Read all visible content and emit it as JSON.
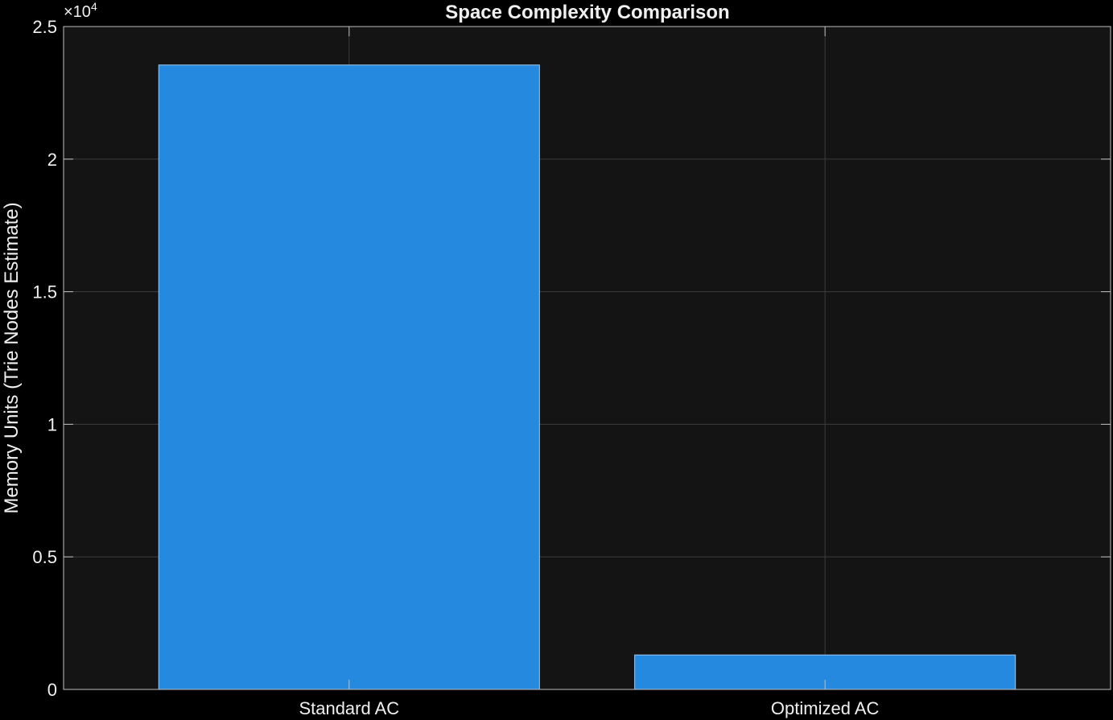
{
  "chart_data": {
    "type": "bar",
    "title": "Space Complexity Comparison",
    "xlabel": "",
    "ylabel": "Memory Units (Trie Nodes Estimate)",
    "categories": [
      "Standard AC",
      "Optimized AC"
    ],
    "values": [
      23550,
      1300
    ],
    "ylim": [
      0,
      25000
    ],
    "xlim": [
      0.4,
      2.6
    ],
    "yticks": [
      0,
      5000,
      10000,
      15000,
      20000,
      25000
    ],
    "ytick_labels": [
      "0",
      "0.5",
      "1",
      "1.5",
      "2",
      "2.5"
    ],
    "y_exponent_label": "×10",
    "y_exponent_power": "4",
    "grid": true,
    "colors": {
      "figure_background": "#000000",
      "axes_background": "#141414",
      "bar": "#2589DF",
      "bar_edge": "#9ECBF2",
      "grid": "#3D3D3D",
      "axis": "#BFBFBF",
      "text": "#F0F0F0"
    }
  }
}
